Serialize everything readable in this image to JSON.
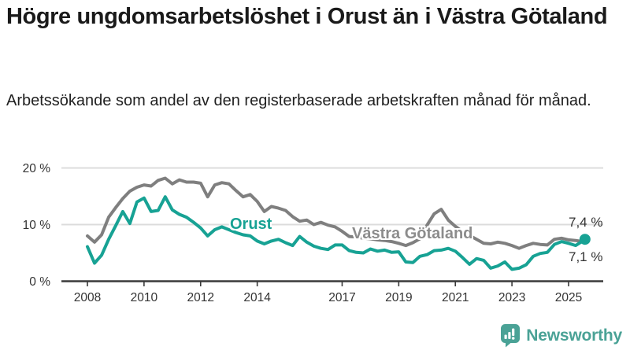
{
  "header": {
    "title": "Högre ungdomsarbetslöshet i Orust än i Västra Götaland",
    "subtitle": "Arbetssökande som andel av den registerbaserade arbetskraften månad för månad."
  },
  "chart_data": {
    "type": "line",
    "title": "",
    "xlabel": "",
    "ylabel": "",
    "grid": "horizontal-gridlines",
    "legend_position": "inline-labels-on-lines",
    "ylim": [
      0,
      21
    ],
    "xlim": [
      2008,
      2025.7
    ],
    "yticks": [
      {
        "value": 0,
        "label": "0 %"
      },
      {
        "value": 10,
        "label": "10 %"
      },
      {
        "value": 20,
        "label": "20 %"
      }
    ],
    "xticks": [
      {
        "value": 2008,
        "label": "2008"
      },
      {
        "value": 2010,
        "label": "2010"
      },
      {
        "value": 2012,
        "label": "2012"
      },
      {
        "value": 2014,
        "label": "2014"
      },
      {
        "value": 2017,
        "label": "2017"
      },
      {
        "value": 2019,
        "label": "2019"
      },
      {
        "value": 2021,
        "label": "2021"
      },
      {
        "value": 2023,
        "label": "2023"
      },
      {
        "value": 2025,
        "label": "2025"
      }
    ],
    "x": [
      2008.0,
      2008.25,
      2008.5,
      2008.75,
      2009.0,
      2009.25,
      2009.5,
      2009.75,
      2010.0,
      2010.25,
      2010.5,
      2010.75,
      2011.0,
      2011.25,
      2011.5,
      2011.75,
      2012.0,
      2012.25,
      2012.5,
      2012.75,
      2013.0,
      2013.25,
      2013.5,
      2013.75,
      2014.0,
      2014.25,
      2014.5,
      2014.75,
      2015.0,
      2015.25,
      2015.5,
      2015.75,
      2016.0,
      2016.25,
      2016.5,
      2016.75,
      2017.0,
      2017.25,
      2017.5,
      2017.75,
      2018.0,
      2018.25,
      2018.5,
      2018.75,
      2019.0,
      2019.25,
      2019.5,
      2019.75,
      2020.0,
      2020.25,
      2020.5,
      2020.75,
      2021.0,
      2021.25,
      2021.5,
      2021.75,
      2022.0,
      2022.25,
      2022.5,
      2022.75,
      2023.0,
      2023.25,
      2023.5,
      2023.75,
      2024.0,
      2024.25,
      2024.5,
      2024.75,
      2025.0,
      2025.25,
      2025.5,
      2025.58
    ],
    "series": [
      {
        "name": "Västra Götaland",
        "color": "#7f7f7f",
        "label_color": "#8c8c8c",
        "end_label": "7,1 %",
        "end_dot": false,
        "values": [
          8.0,
          6.9,
          8.2,
          11.3,
          13.0,
          14.6,
          15.9,
          16.6,
          17.0,
          16.8,
          17.8,
          18.2,
          17.2,
          17.9,
          17.5,
          17.5,
          17.3,
          14.9,
          17.0,
          17.4,
          17.2,
          16.0,
          14.9,
          15.3,
          14.1,
          12.3,
          13.2,
          12.9,
          12.5,
          11.4,
          10.6,
          10.8,
          10.0,
          10.4,
          9.9,
          9.6,
          8.8,
          7.9,
          7.8,
          7.6,
          7.5,
          7.3,
          7.2,
          7.0,
          6.7,
          6.3,
          6.8,
          7.5,
          9.9,
          11.9,
          12.7,
          10.8,
          9.7,
          8.8,
          8.1,
          7.4,
          6.7,
          6.6,
          6.9,
          6.7,
          6.3,
          5.8,
          6.3,
          6.7,
          6.5,
          6.4,
          7.4,
          7.6,
          7.3,
          7.2,
          7.0,
          7.1
        ]
      },
      {
        "name": "Orust",
        "color": "#17a294",
        "label_color": "#17a294",
        "end_label": "7,4 %",
        "end_dot": true,
        "values": [
          6.1,
          3.2,
          4.6,
          7.4,
          9.8,
          12.3,
          10.2,
          14.0,
          14.7,
          12.3,
          12.5,
          14.9,
          12.6,
          11.8,
          11.3,
          10.4,
          9.4,
          8.0,
          9.1,
          9.6,
          9.1,
          8.6,
          8.2,
          8.0,
          7.1,
          6.6,
          7.1,
          7.4,
          6.8,
          6.3,
          7.9,
          6.9,
          6.2,
          5.8,
          5.6,
          6.4,
          6.4,
          5.4,
          5.1,
          5.0,
          5.7,
          5.3,
          5.5,
          5.1,
          5.2,
          3.4,
          3.3,
          4.4,
          4.7,
          5.4,
          5.5,
          5.8,
          5.3,
          4.2,
          3.0,
          4.0,
          3.7,
          2.3,
          2.7,
          3.4,
          2.1,
          2.3,
          2.9,
          4.4,
          4.9,
          5.1,
          6.5,
          7.0,
          6.7,
          6.3,
          7.1,
          7.4
        ]
      }
    ]
  },
  "annotations": {
    "orust_label": "Orust",
    "vg_label": "Västra Götaland",
    "end_value_orust": "7,4 %",
    "end_value_vg": "7,1 %"
  },
  "footer": {
    "brand": "Newsworthy",
    "brand_color": "#4aa296",
    "icon": "newsworthy-bar-chart-bubble-icon"
  }
}
